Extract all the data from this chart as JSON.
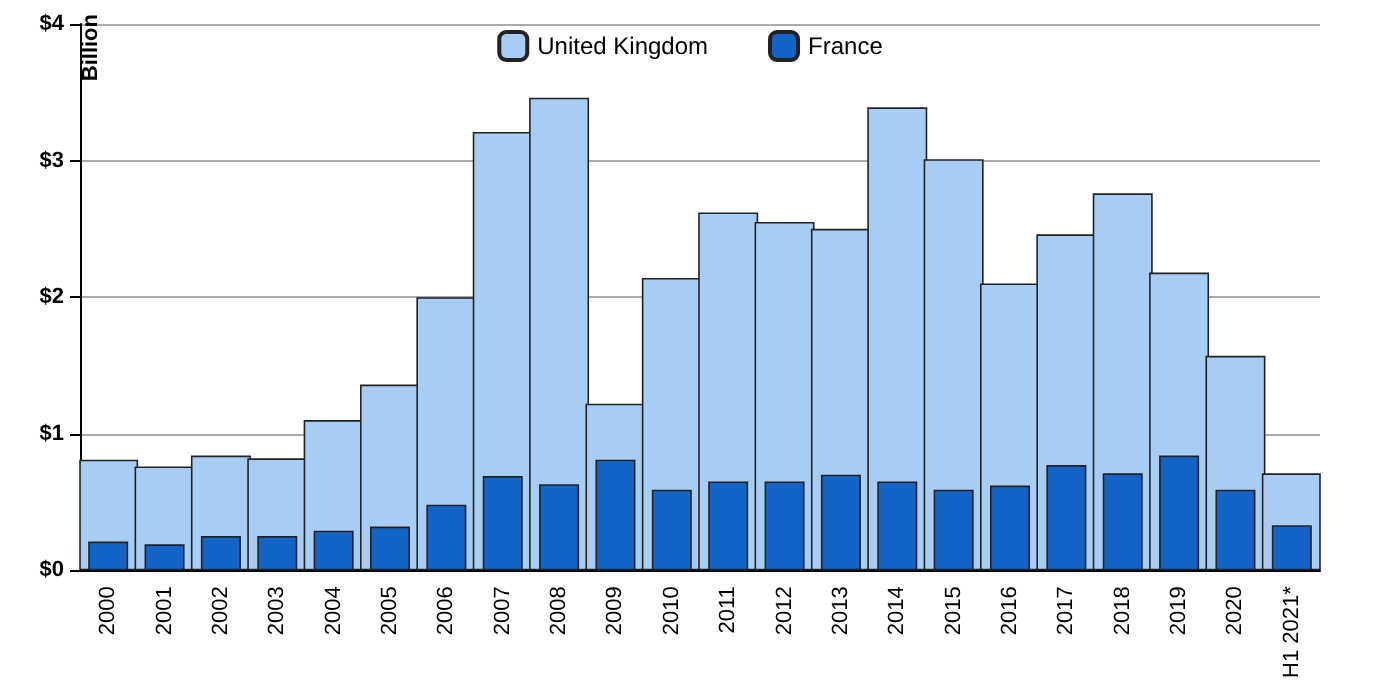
{
  "chart_data": {
    "type": "bar",
    "ylabel": "Billion",
    "categories": [
      "2000",
      "2001",
      "2002",
      "2003",
      "2004",
      "2005",
      "2006",
      "2007",
      "2008",
      "2009",
      "2010",
      "2011",
      "2012",
      "2013",
      "2014",
      "2015",
      "2016",
      "2017",
      "2018",
      "2019",
      "2020",
      "H1 2021*"
    ],
    "series": [
      {
        "name": "United Kingdom",
        "color": "#a8cdf4",
        "values": [
          0.81,
          0.76,
          0.84,
          0.82,
          1.1,
          1.36,
          2.0,
          3.21,
          3.46,
          1.22,
          2.14,
          2.62,
          2.55,
          2.5,
          3.39,
          3.01,
          2.1,
          2.46,
          2.76,
          2.18,
          1.57,
          0.71
        ]
      },
      {
        "name": "France",
        "color": "#1464c8",
        "values": [
          0.21,
          0.19,
          0.25,
          0.25,
          0.29,
          0.32,
          0.48,
          0.69,
          0.63,
          0.81,
          0.59,
          0.65,
          0.65,
          0.7,
          0.65,
          0.59,
          0.62,
          0.77,
          0.71,
          0.84,
          0.59,
          0.33
        ]
      }
    ],
    "ylim": [
      0,
      4
    ],
    "yticks": [
      {
        "value": 0,
        "label": "$0"
      },
      {
        "value": 1,
        "label": "$1"
      },
      {
        "value": 2,
        "label": "$2"
      },
      {
        "value": 3,
        "label": "$3"
      },
      {
        "value": 4,
        "label": "$4"
      }
    ],
    "grid": "y",
    "legend": "top"
  }
}
